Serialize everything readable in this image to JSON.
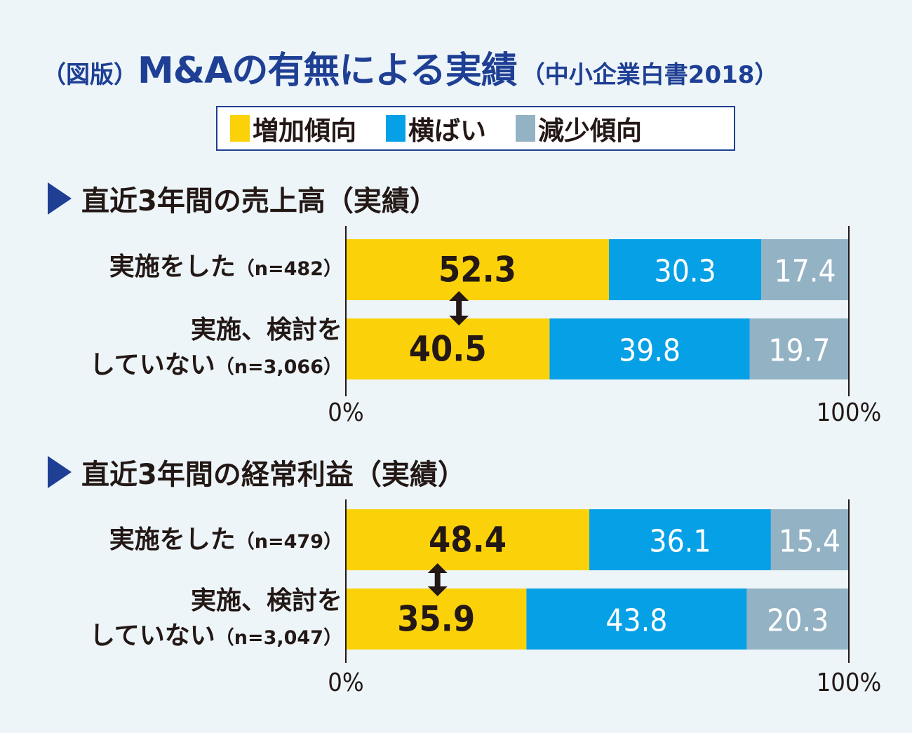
{
  "title": {
    "prefix": "（図版）",
    "main": "M&Aの有無による実績",
    "source": "（中小企業白書2018）"
  },
  "legend": [
    {
      "label": "増加傾向",
      "color": "#fbd20a"
    },
    {
      "label": "横ばい",
      "color": "#05a0e6"
    },
    {
      "label": "減少傾向",
      "color": "#93b2c4"
    }
  ],
  "colors": {
    "accent": "#1e3f94",
    "text_dark": "#231815",
    "text_light": "#ffffff",
    "background": "#edf5f9"
  },
  "chart_data": [
    {
      "type": "bar",
      "orientation": "horizontal-stacked-100",
      "title": "直近3年間の売上高（実績）",
      "categories": [
        {
          "label_line1": "実施をした",
          "label_line2": "",
          "n": "（n=482）"
        },
        {
          "label_line1": "実施、検討を",
          "label_line2": "していない",
          "n": "（n=3,066）"
        }
      ],
      "series": [
        {
          "name": "増加傾向",
          "values": [
            52.3,
            40.5
          ]
        },
        {
          "name": "横ばい",
          "values": [
            30.3,
            39.8
          ]
        },
        {
          "name": "減少傾向",
          "values": [
            17.4,
            19.7
          ]
        }
      ],
      "xlim": [
        0,
        100
      ],
      "xtick_labels": [
        "0%",
        "100%"
      ],
      "annotation": "double-arrow comparing 増加傾向 between rows",
      "grid": false
    },
    {
      "type": "bar",
      "orientation": "horizontal-stacked-100",
      "title": "直近3年間の経常利益（実績）",
      "categories": [
        {
          "label_line1": "実施をした",
          "label_line2": "",
          "n": "（n=479）"
        },
        {
          "label_line1": "実施、検討を",
          "label_line2": "していない",
          "n": "（n=3,047）"
        }
      ],
      "series": [
        {
          "name": "増加傾向",
          "values": [
            48.4,
            35.9
          ]
        },
        {
          "name": "横ばい",
          "values": [
            36.1,
            43.8
          ]
        },
        {
          "name": "減少傾向",
          "values": [
            15.4,
            20.3
          ]
        }
      ],
      "xlim": [
        0,
        100
      ],
      "xtick_labels": [
        "0%",
        "100%"
      ],
      "annotation": "double-arrow comparing 増加傾向 between rows",
      "grid": false
    }
  ]
}
